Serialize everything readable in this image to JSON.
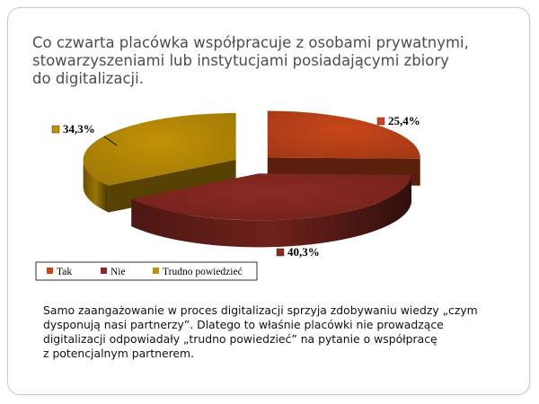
{
  "slide": {
    "title_lines": [
      "Co czwarta placówka współpracuje z osobami prywatnymi,",
      "stowarzyszeniami lub instytucjami posiadającymi zbiory",
      "do digitalizacji."
    ],
    "caption_lines": [
      "Samo zaangażowanie w proces digitalizacji sprzyja zdobywaniu wiedzy „czym",
      "dysponują nasi partnerzy”. Dlatego to właśnie placówki nie prowadzące",
      "digitalizacji odpowiadały „trudno powiedzieć” na pytanie o współpracę",
      "z potencjalnym partnerem."
    ]
  },
  "chart_data": {
    "type": "pie",
    "style": "3d-exploded",
    "slices": [
      {
        "label": "Tak",
        "value": 25.4,
        "display": "25,4%",
        "color": "#c8461a"
      },
      {
        "label": "Nie",
        "value": 40.3,
        "display": "40,3%",
        "color": "#8b2a22"
      },
      {
        "label": "Trudno powiedzieć",
        "value": 34.3,
        "display": "34,3%",
        "color": "#c19206"
      }
    ],
    "legend": {
      "position": "bottom",
      "items": [
        "Tak",
        "Nie",
        "Trudno powiedzieć"
      ]
    }
  }
}
